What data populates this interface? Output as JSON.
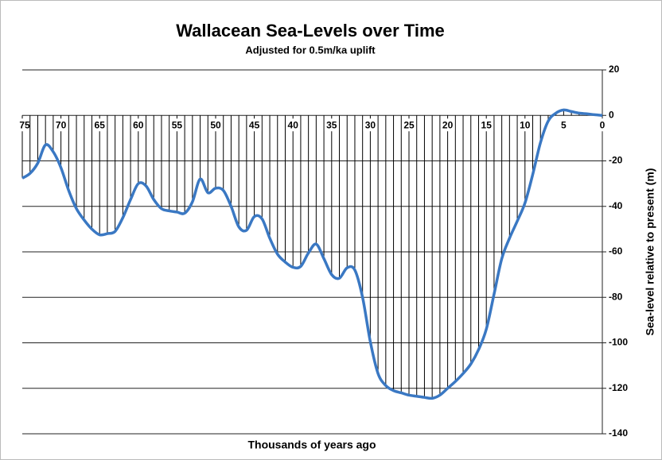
{
  "chart_data": {
    "type": "line",
    "title": "Wallacean Sea-Levels over Time",
    "subtitle": "Adjusted for 0.5m/ka uplift",
    "x_label": "Thousands of years ago",
    "y_label": "Sea-level relative to present (m)",
    "x": [
      75,
      74,
      73,
      72,
      71,
      70,
      69,
      68,
      67,
      66,
      65,
      64,
      63,
      62,
      61,
      60,
      59,
      58,
      57,
      56,
      55,
      54,
      53,
      52,
      51,
      50,
      49,
      48,
      47,
      46,
      45,
      44,
      43,
      42,
      41,
      40,
      39,
      38,
      37,
      36,
      35,
      34,
      33,
      32,
      31,
      30,
      29,
      28,
      27,
      26,
      25,
      24,
      23,
      22,
      21,
      20,
      19,
      18,
      17,
      16,
      15,
      14,
      13,
      12,
      11,
      10,
      9,
      8,
      7,
      6,
      5,
      4,
      3,
      2,
      1,
      0
    ],
    "values": [
      -27.6,
      -25.5,
      -21,
      -13,
      -16,
      -23,
      -33,
      -41,
      -46,
      -50,
      -52.5,
      -52,
      -51,
      -45,
      -37,
      -30,
      -31,
      -37,
      -41,
      -42,
      -42.5,
      -43,
      -38,
      -28,
      -34,
      -32,
      -33,
      -40,
      -49,
      -50.5,
      -44.5,
      -45.5,
      -54,
      -61,
      -64.5,
      -66.8,
      -66.4,
      -60.5,
      -56.6,
      -63,
      -70,
      -71.6,
      -67,
      -68,
      -80,
      -99.5,
      -113.5,
      -118.8,
      -121,
      -122,
      -123,
      -123.5,
      -124,
      -124.4,
      -123,
      -120,
      -117,
      -113.5,
      -109.3,
      -103,
      -94,
      -78.6,
      -63,
      -54,
      -46.5,
      -38.5,
      -26,
      -12,
      -2.5,
      1,
      2.4,
      1.7,
      1,
      0.7,
      0.3,
      0
    ],
    "color": "#3a78c3",
    "drop_line_color": "#000000",
    "xlim": [
      75,
      0
    ],
    "xticks": [
      75,
      70,
      65,
      60,
      55,
      50,
      45,
      40,
      35,
      30,
      25,
      20,
      15,
      10,
      5,
      0
    ],
    "ylim": [
      -140,
      20
    ],
    "yticks": [
      -140,
      -120,
      -100,
      -80,
      -60,
      -40,
      -20,
      0,
      20
    ],
    "grid": true
  }
}
